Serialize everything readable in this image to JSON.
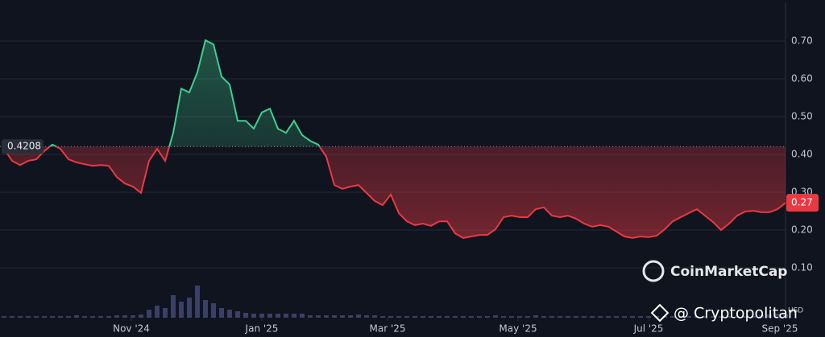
{
  "chart_data": {
    "type": "line",
    "values": [
      0.415,
      0.383,
      0.372,
      0.383,
      0.387,
      0.409,
      0.426,
      0.415,
      0.387,
      0.379,
      0.374,
      0.37,
      0.372,
      0.37,
      0.34,
      0.323,
      0.315,
      0.298,
      0.383,
      0.415,
      0.383,
      0.457,
      0.574,
      0.564,
      0.617,
      0.702,
      0.691,
      0.606,
      0.585,
      0.489,
      0.489,
      0.468,
      0.511,
      0.521,
      0.468,
      0.457,
      0.489,
      0.451,
      0.436,
      0.426,
      0.394,
      0.319,
      0.309,
      0.315,
      0.319,
      0.298,
      0.277,
      0.266,
      0.294,
      0.245,
      0.223,
      0.213,
      0.217,
      0.211,
      0.223,
      0.223,
      0.191,
      0.179,
      0.183,
      0.187,
      0.187,
      0.202,
      0.234,
      0.238,
      0.234,
      0.234,
      0.255,
      0.26,
      0.238,
      0.234,
      0.238,
      0.23,
      0.217,
      0.209,
      0.213,
      0.209,
      0.196,
      0.183,
      0.179,
      0.183,
      0.181,
      0.185,
      0.202,
      0.223,
      0.234,
      0.245,
      0.255,
      0.238,
      0.221,
      0.2,
      0.217,
      0.238,
      0.249,
      0.251,
      0.247,
      0.247,
      0.255,
      0.272
    ],
    "volume": [
      2,
      2,
      2,
      2,
      2,
      2,
      2,
      2,
      2,
      3,
      2,
      2,
      2,
      2,
      3,
      3,
      3,
      4,
      10,
      15,
      12,
      28,
      20,
      25,
      40,
      22,
      18,
      12,
      10,
      8,
      6,
      5,
      5,
      5,
      5,
      5,
      5,
      5,
      3,
      3,
      3,
      3,
      3,
      3,
      4,
      3,
      3,
      2,
      2,
      2,
      2,
      2,
      2,
      2,
      2,
      2,
      2,
      2,
      2,
      2,
      2,
      3,
      2,
      2,
      2,
      2,
      3,
      2,
      2,
      2,
      2,
      2,
      2,
      2,
      2,
      2,
      2,
      2,
      2,
      2,
      2,
      2,
      2,
      2,
      2,
      2,
      2,
      2,
      2,
      2,
      2,
      2,
      2,
      2,
      3,
      4,
      5,
      4
    ],
    "volume_ylim": [
      0,
      50
    ],
    "volume_unit": "USD",
    "xlim": [
      0,
      97
    ],
    "xticks": [
      {
        "value": 15.8,
        "label": "Nov '24"
      },
      {
        "value": 32,
        "label": "Jan '25"
      },
      {
        "value": 47.6,
        "label": "Mar '25"
      },
      {
        "value": 63.8,
        "label": "May '25"
      },
      {
        "value": 80,
        "label": "Jul '25"
      },
      {
        "value": 96.3,
        "label": "Sep '25"
      }
    ],
    "ylim": [
      0,
      0.8
    ],
    "yticks": [
      {
        "value": 0.1,
        "label": "0.10"
      },
      {
        "value": 0.2,
        "label": "0.20"
      },
      {
        "value": 0.3,
        "label": "0.30"
      },
      {
        "value": 0.4,
        "label": "0.40"
      },
      {
        "value": 0.5,
        "label": "0.50"
      },
      {
        "value": 0.6,
        "label": "0.60"
      },
      {
        "value": 0.7,
        "label": "0.70"
      }
    ],
    "grid": true,
    "color_up": "#3ecf8e",
    "color_down": "#ea3943",
    "reference_line": {
      "value": 0.4208,
      "label": "0.4208"
    },
    "current_price": {
      "value": 0.272,
      "label": "0.27"
    },
    "watermark": "CoinMarketCap",
    "credit": "@ Cryptopolitan"
  }
}
